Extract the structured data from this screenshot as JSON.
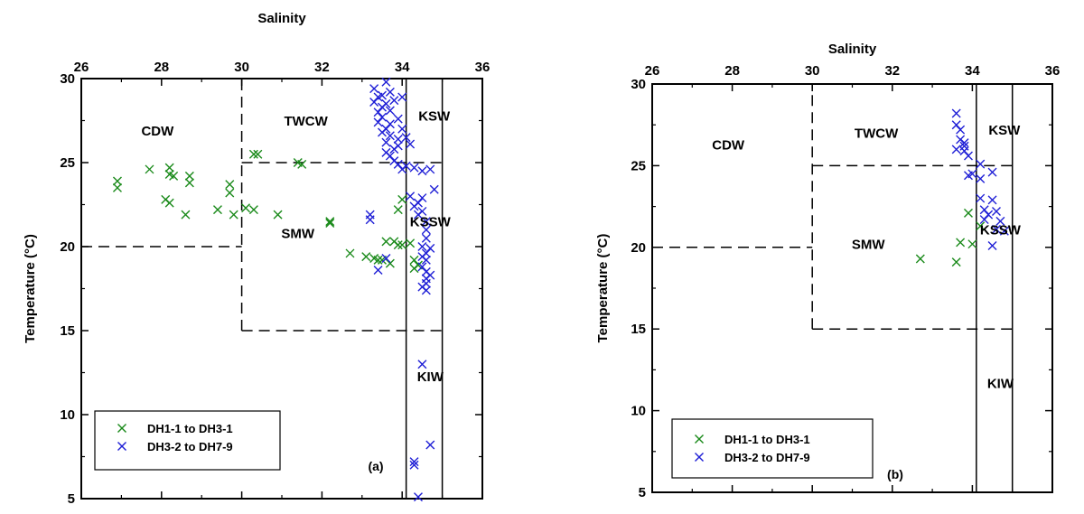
{
  "colors": {
    "series_green": "#1a8a1a",
    "series_blue": "#1f1fd6",
    "axes": "#000000"
  },
  "chart_data": [
    {
      "type": "scatter",
      "panel_label": "(a)",
      "xlabel": "Salinity",
      "ylabel": "Temperature (°C)",
      "xlim": [
        26,
        36
      ],
      "ylim": [
        5,
        30
      ],
      "x_axis_position": "top",
      "xticks": [
        "26",
        "28",
        "30",
        "32",
        "34",
        "36"
      ],
      "yticks": [
        "5",
        "10",
        "15",
        "20",
        "25",
        "30"
      ],
      "grid": false,
      "legend_placement": "bottom-left",
      "regions": [
        {
          "label": "CDW",
          "x": 27.9,
          "y": 26.6
        },
        {
          "label": "TWCW",
          "x": 31.6,
          "y": 27.2
        },
        {
          "label": "KSW",
          "x": 34.8,
          "y": 27.5
        },
        {
          "label": "SMW",
          "x": 31.4,
          "y": 20.5
        },
        {
          "label": "KSSW",
          "x": 34.7,
          "y": 21.2
        },
        {
          "label": "KIW",
          "x": 34.7,
          "y": 12.0
        }
      ],
      "series": [
        {
          "name": "DH1-1 to DH3-1",
          "color": "#1a8a1a",
          "points": [
            [
              26.9,
              23.9
            ],
            [
              26.9,
              23.5
            ],
            [
              27.7,
              24.6
            ],
            [
              28.2,
              24.7
            ],
            [
              28.2,
              24.3
            ],
            [
              28.3,
              24.2
            ],
            [
              28.7,
              24.2
            ],
            [
              28.7,
              23.8
            ],
            [
              28.1,
              22.8
            ],
            [
              28.2,
              22.6
            ],
            [
              28.6,
              21.9
            ],
            [
              29.4,
              22.2
            ],
            [
              29.7,
              23.7
            ],
            [
              29.7,
              23.2
            ],
            [
              29.8,
              21.9
            ],
            [
              30.1,
              22.3
            ],
            [
              30.3,
              22.2
            ],
            [
              30.9,
              21.9
            ],
            [
              30.3,
              25.5
            ],
            [
              30.4,
              25.5
            ],
            [
              31.4,
              25.0
            ],
            [
              31.5,
              24.9
            ],
            [
              32.2,
              21.4
            ],
            [
              32.2,
              21.5
            ],
            [
              32.7,
              19.6
            ],
            [
              33.1,
              19.4
            ],
            [
              33.3,
              19.3
            ],
            [
              33.4,
              19.2
            ],
            [
              33.5,
              19.2
            ],
            [
              33.6,
              20.3
            ],
            [
              33.7,
              19.0
            ],
            [
              33.8,
              20.3
            ],
            [
              33.9,
              20.1
            ],
            [
              34.0,
              20.1
            ],
            [
              33.9,
              22.2
            ],
            [
              34.0,
              22.8
            ],
            [
              34.2,
              20.2
            ],
            [
              34.3,
              19.2
            ],
            [
              34.3,
              18.7
            ],
            [
              34.4,
              18.9
            ]
          ]
        },
        {
          "name": "DH3-2 to DH7-9",
          "color": "#1f1fd6",
          "points": [
            [
              33.3,
              29.4
            ],
            [
              33.3,
              28.6
            ],
            [
              33.4,
              28.0
            ],
            [
              33.4,
              27.4
            ],
            [
              33.5,
              29.0
            ],
            [
              33.5,
              28.3
            ],
            [
              33.5,
              27.7
            ],
            [
              33.6,
              29.8
            ],
            [
              33.6,
              28.5
            ],
            [
              33.6,
              27.0
            ],
            [
              33.6,
              26.2
            ],
            [
              33.7,
              29.2
            ],
            [
              33.7,
              28.1
            ],
            [
              33.7,
              27.3
            ],
            [
              33.7,
              26.6
            ],
            [
              33.8,
              28.7
            ],
            [
              33.8,
              25.8
            ],
            [
              33.8,
              25.1
            ],
            [
              33.9,
              27.6
            ],
            [
              33.9,
              26.4
            ],
            [
              33.9,
              24.9
            ],
            [
              34.0,
              28.9
            ],
            [
              34.0,
              27.0
            ],
            [
              34.0,
              24.6
            ],
            [
              33.4,
              28.9
            ],
            [
              33.5,
              26.8
            ],
            [
              33.6,
              25.6
            ],
            [
              33.7,
              25.4
            ],
            [
              33.9,
              26.0
            ],
            [
              34.1,
              24.8
            ],
            [
              33.2,
              21.9
            ],
            [
              33.2,
              21.6
            ],
            [
              33.4,
              18.6
            ],
            [
              33.6,
              19.3
            ],
            [
              34.1,
              26.5
            ],
            [
              34.2,
              26.1
            ],
            [
              34.3,
              24.7
            ],
            [
              34.2,
              23.0
            ],
            [
              34.3,
              22.4
            ],
            [
              34.4,
              22.6
            ],
            [
              34.4,
              21.9
            ],
            [
              34.5,
              22.1
            ],
            [
              34.5,
              22.9
            ],
            [
              34.6,
              21.0
            ],
            [
              34.6,
              21.5
            ],
            [
              34.6,
              20.5
            ],
            [
              34.5,
              20.0
            ],
            [
              34.6,
              19.6
            ],
            [
              34.6,
              19.2
            ],
            [
              34.5,
              18.8
            ],
            [
              34.6,
              18.5
            ],
            [
              34.6,
              18.1
            ],
            [
              34.6,
              17.8
            ],
            [
              34.6,
              17.4
            ],
            [
              34.7,
              19.9
            ],
            [
              34.7,
              18.3
            ],
            [
              34.5,
              19.4
            ],
            [
              34.5,
              17.6
            ],
            [
              34.7,
              24.6
            ],
            [
              34.8,
              23.4
            ],
            [
              34.5,
              24.5
            ],
            [
              34.5,
              13.0
            ],
            [
              34.3,
              7.2
            ],
            [
              34.3,
              7.0
            ],
            [
              34.7,
              8.2
            ],
            [
              34.4,
              5.1
            ]
          ]
        }
      ]
    },
    {
      "type": "scatter",
      "panel_label": "(b)",
      "xlabel": "Salinity",
      "ylabel": "Temperature (°C)",
      "xlim": [
        26,
        36
      ],
      "ylim": [
        5,
        30
      ],
      "x_axis_position": "top",
      "xticks": [
        "26",
        "28",
        "30",
        "32",
        "34",
        "36"
      ],
      "yticks": [
        "5",
        "10",
        "15",
        "20",
        "25",
        "30"
      ],
      "grid": false,
      "legend_placement": "bottom-left",
      "regions": [
        {
          "label": "CDW",
          "x": 27.9,
          "y": 26.0
        },
        {
          "label": "TWCW",
          "x": 31.6,
          "y": 26.7
        },
        {
          "label": "KSW",
          "x": 34.8,
          "y": 26.9
        },
        {
          "label": "SMW",
          "x": 31.4,
          "y": 19.9
        },
        {
          "label": "KSSW",
          "x": 34.7,
          "y": 20.8
        },
        {
          "label": "KIW",
          "x": 34.7,
          "y": 11.4
        }
      ],
      "series": [
        {
          "name": "DH1-1 to DH3-1",
          "color": "#1a8a1a",
          "points": [
            [
              32.7,
              19.3
            ],
            [
              33.6,
              19.1
            ],
            [
              33.7,
              20.3
            ],
            [
              33.9,
              22.1
            ],
            [
              34.0,
              20.2
            ],
            [
              34.2,
              21.3
            ]
          ]
        },
        {
          "name": "DH3-2 to DH7-9",
          "color": "#1f1fd6",
          "points": [
            [
              33.6,
              28.2
            ],
            [
              33.6,
              27.5
            ],
            [
              33.7,
              27.2
            ],
            [
              33.7,
              26.6
            ],
            [
              33.8,
              26.2
            ],
            [
              33.8,
              25.9
            ],
            [
              33.6,
              26.0
            ],
            [
              33.8,
              26.4
            ],
            [
              33.9,
              25.6
            ],
            [
              33.9,
              24.4
            ],
            [
              34.0,
              24.5
            ],
            [
              34.2,
              25.1
            ],
            [
              34.2,
              24.2
            ],
            [
              34.2,
              23.0
            ],
            [
              34.3,
              22.3
            ],
            [
              34.3,
              21.7
            ],
            [
              34.4,
              22.0
            ],
            [
              34.5,
              22.9
            ],
            [
              34.5,
              24.6
            ],
            [
              34.6,
              22.2
            ],
            [
              34.6,
              21.1
            ],
            [
              34.5,
              20.1
            ],
            [
              34.7,
              21.6
            ],
            [
              34.8,
              21.0
            ]
          ]
        }
      ]
    }
  ]
}
